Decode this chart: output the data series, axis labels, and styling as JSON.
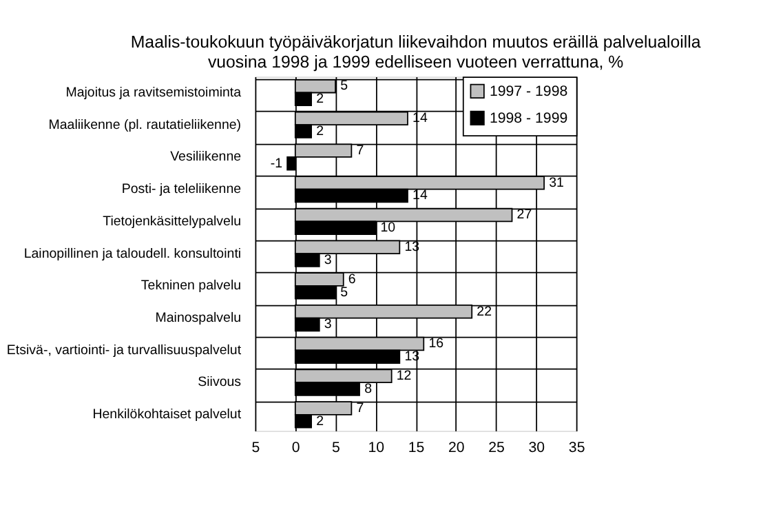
{
  "chart_data": {
    "type": "bar",
    "orientation": "horizontal",
    "title": [
      "Maalis-toukokuun työpäiväkorjatun liikevaihdon muutos eräillä palvelualoilla",
      "vuosina 1998 ja 1999 edelliseen vuoteen verrattuna, %"
    ],
    "categories": [
      "Majoitus  ja ravitsemistoiminta",
      "Maaliikenne (pl. rautatieliikenne)",
      "Vesiliikenne",
      "Posti- ja teleliikenne",
      "Tietojenkäsittelypalvelu",
      "Lainopillinen ja taloudell. konsultointi",
      "Tekninen palvelu",
      "Mainospalvelu",
      "Etsivä-, vartiointi- ja turvallisuuspalvelut",
      "Siivous",
      "Henkilökohtaiset palvelut"
    ],
    "series": [
      {
        "name": "1997 - 1998",
        "color": "#c0c0c0",
        "values": [
          5,
          14,
          7,
          31,
          27,
          13,
          6,
          22,
          16,
          12,
          7
        ]
      },
      {
        "name": "1998 - 1999",
        "color": "#000000",
        "values": [
          2,
          2,
          -1,
          14,
          10,
          3,
          5,
          3,
          13,
          8,
          2
        ]
      }
    ],
    "xlim": [
      -5,
      35
    ],
    "xticks": [
      {
        "value": -5,
        "label": "5"
      },
      0,
      5,
      10,
      15,
      20,
      25,
      30,
      35
    ],
    "grid": true,
    "legend": "top right",
    "data_labels": true
  }
}
